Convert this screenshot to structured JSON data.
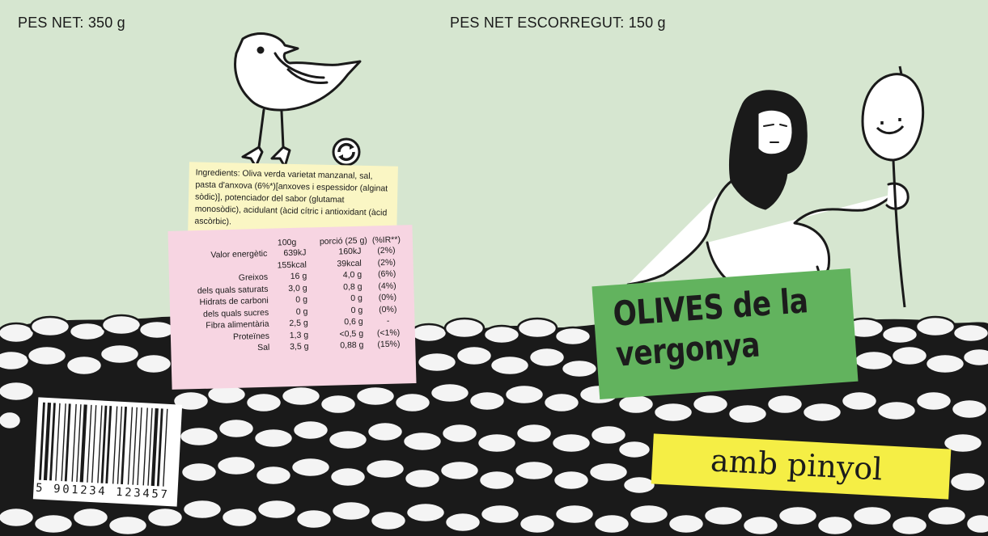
{
  "net_weight": "PES NET: 350 g",
  "drained_weight": "PES NET ESCORREGUT: 150 g",
  "ingredients_text": "Ingredients: Oliva verda varietat manzanal, sal, pasta d'anxova (6%*)[anxoves i espessidor (alginat sòdic)], potenciador del sabor (glutamat monosòdic), acidulant (àcid cítric i antioxidant (àcid ascòrbic).",
  "nutrition": {
    "headers": [
      "100g",
      "porció (25 g)",
      "(%IR**)"
    ],
    "rows": [
      {
        "label": "Valor energètic",
        "per100": "639kJ",
        "portion": "160kJ",
        "ir": "(2%)"
      },
      {
        "label": "",
        "per100": "155kcal",
        "portion": "39kcal",
        "ir": "(2%)"
      },
      {
        "label": "Greixos",
        "per100": "16 g",
        "portion": "4,0 g",
        "ir": "(6%)"
      },
      {
        "label": "dels quals saturats",
        "per100": "3,0 g",
        "portion": "0,8 g",
        "ir": "(4%)"
      },
      {
        "label": "Hidrats de carboni",
        "per100": "0 g",
        "portion": "0 g",
        "ir": "(0%)"
      },
      {
        "label": "dels quals sucres",
        "per100": "0 g",
        "portion": "0 g",
        "ir": "(0%)"
      },
      {
        "label": "Fibra alimentària",
        "per100": "2,5 g",
        "portion": "0,6 g",
        "ir": "-"
      },
      {
        "label": "Proteïnes",
        "per100": "1,3 g",
        "portion": "<0,5 g",
        "ir": "(<1%)"
      },
      {
        "label": "Sal",
        "per100": "3,5 g",
        "portion": "0,88 g",
        "ir": "(15%)"
      }
    ]
  },
  "title_line1": "OLIVES de la",
  "title_line2": "vergonya",
  "subtitle": "amb pinyol",
  "barcode_digits": "5 901234 123457",
  "colors": {
    "background": "#d6e6d0",
    "green_label": "#62b35e",
    "yellow_label": "#f5ee45",
    "ingredients_bg": "#faf6c4",
    "nutrition_bg": "#f7d5e2"
  },
  "icons": [
    "seagull-illustration",
    "recycle-icon",
    "bearded-man-illustration",
    "olive-on-stick-illustration",
    "olive-pile-illustration",
    "barcode-icon"
  ]
}
